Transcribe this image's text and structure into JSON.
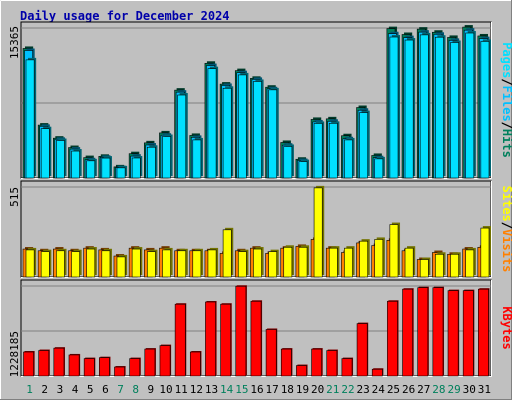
{
  "colors": {
    "hits": "#00805c",
    "files": "#00c0ff",
    "pages": "#00e0ff",
    "visits": "#ff8000",
    "sites": "#ffff00",
    "kbytes": "#ff0000",
    "weekend_label": "#00805c",
    "weekday_label": "#000000",
    "plot_bg": "#c0c0c0",
    "title": "#0000aa"
  },
  "chart_data": [
    {
      "type": "bar",
      "title": "Daily usage for December 2024",
      "ytick_max_label": "15365",
      "ylim": [
        0,
        15365
      ],
      "legend": {
        "parts": [
          "Pages",
          "Files",
          "Hits"
        ],
        "separator": "/"
      },
      "categories": [
        "1",
        "2",
        "3",
        "4",
        "5",
        "6",
        "7",
        "8",
        "9",
        "10",
        "11",
        "12",
        "13",
        "14",
        "15",
        "16",
        "17",
        "18",
        "19",
        "20",
        "21",
        "22",
        "23",
        "24",
        "25",
        "26",
        "27",
        "28",
        "29",
        "30",
        "31"
      ],
      "series": [
        {
          "name": "Hits",
          "values": [
            13270,
            5420,
            4080,
            3120,
            2090,
            2220,
            1140,
            2490,
            3600,
            4620,
            9000,
            4360,
            11750,
            9620,
            11000,
            10210,
            9300,
            3640,
            1920,
            6000,
            6060,
            4330,
            7220,
            2310,
            15300,
            14700,
            15250,
            14930,
            14400,
            15460,
            14550
          ]
        },
        {
          "name": "Files",
          "values": [
            13060,
            5290,
            3960,
            2960,
            1870,
            2120,
            1060,
            2240,
            3380,
            4380,
            8790,
            4160,
            11520,
            9480,
            10790,
            10100,
            9140,
            3360,
            1790,
            5740,
            5810,
            4020,
            6940,
            2080,
            14780,
            14380,
            14940,
            14720,
            14100,
            15140,
            14280
          ]
        },
        {
          "name": "Pages",
          "values": [
            12100,
            5050,
            3840,
            2760,
            1760,
            2040,
            1040,
            2050,
            3150,
            4250,
            8500,
            3900,
            11200,
            9190,
            10560,
            9890,
            9030,
            3230,
            1680,
            5590,
            5600,
            3900,
            6700,
            1960,
            14440,
            14130,
            14660,
            14420,
            13880,
            14850,
            13990
          ]
        }
      ]
    },
    {
      "type": "bar",
      "ytick_max_label": "515",
      "ylim": [
        0,
        515
      ],
      "legend": {
        "parts": [
          "Sites",
          "Visits"
        ],
        "separator": "/"
      },
      "categories": [
        "1",
        "2",
        "3",
        "4",
        "5",
        "6",
        "7",
        "8",
        "9",
        "10",
        "11",
        "12",
        "13",
        "14",
        "15",
        "16",
        "17",
        "18",
        "19",
        "20",
        "21",
        "22",
        "23",
        "24",
        "25",
        "26",
        "27",
        "28",
        "29",
        "30",
        "31"
      ],
      "series": [
        {
          "name": "Visits",
          "values": [
            160,
            150,
            160,
            150,
            165,
            155,
            120,
            165,
            155,
            165,
            150,
            150,
            150,
            135,
            150,
            165,
            135,
            165,
            175,
            215,
            165,
            140,
            195,
            180,
            210,
            150,
            100,
            140,
            130,
            160,
            170
          ]
        },
        {
          "name": "Sites",
          "values": [
            155,
            145,
            150,
            145,
            160,
            150,
            115,
            160,
            145,
            155,
            150,
            150,
            155,
            270,
            145,
            160,
            145,
            170,
            170,
            510,
            165,
            165,
            205,
            215,
            300,
            165,
            100,
            130,
            130,
            155,
            280
          ]
        }
      ]
    },
    {
      "type": "bar",
      "ytick_max_label": "1228185",
      "ylim": [
        0,
        2456370
      ],
      "legend": {
        "parts": [
          "KBytes"
        ],
        "separator": ""
      },
      "categories": [
        "1",
        "2",
        "3",
        "4",
        "5",
        "6",
        "7",
        "8",
        "9",
        "10",
        "11",
        "12",
        "13",
        "14",
        "15",
        "16",
        "17",
        "18",
        "19",
        "20",
        "21",
        "22",
        "23",
        "24",
        "25",
        "26",
        "27",
        "28",
        "29",
        "30",
        "31"
      ],
      "series": [
        {
          "name": "KBytes",
          "values": [
            655000,
            695000,
            760000,
            575000,
            475000,
            500000,
            245000,
            475000,
            735000,
            830000,
            1960000,
            655000,
            2020000,
            1960000,
            2450000,
            2040000,
            1270000,
            735000,
            285000,
            735000,
            695000,
            475000,
            1430000,
            185000,
            2040000,
            2370000,
            2410000,
            2410000,
            2330000,
            2330000,
            2370000
          ]
        }
      ]
    }
  ]
}
